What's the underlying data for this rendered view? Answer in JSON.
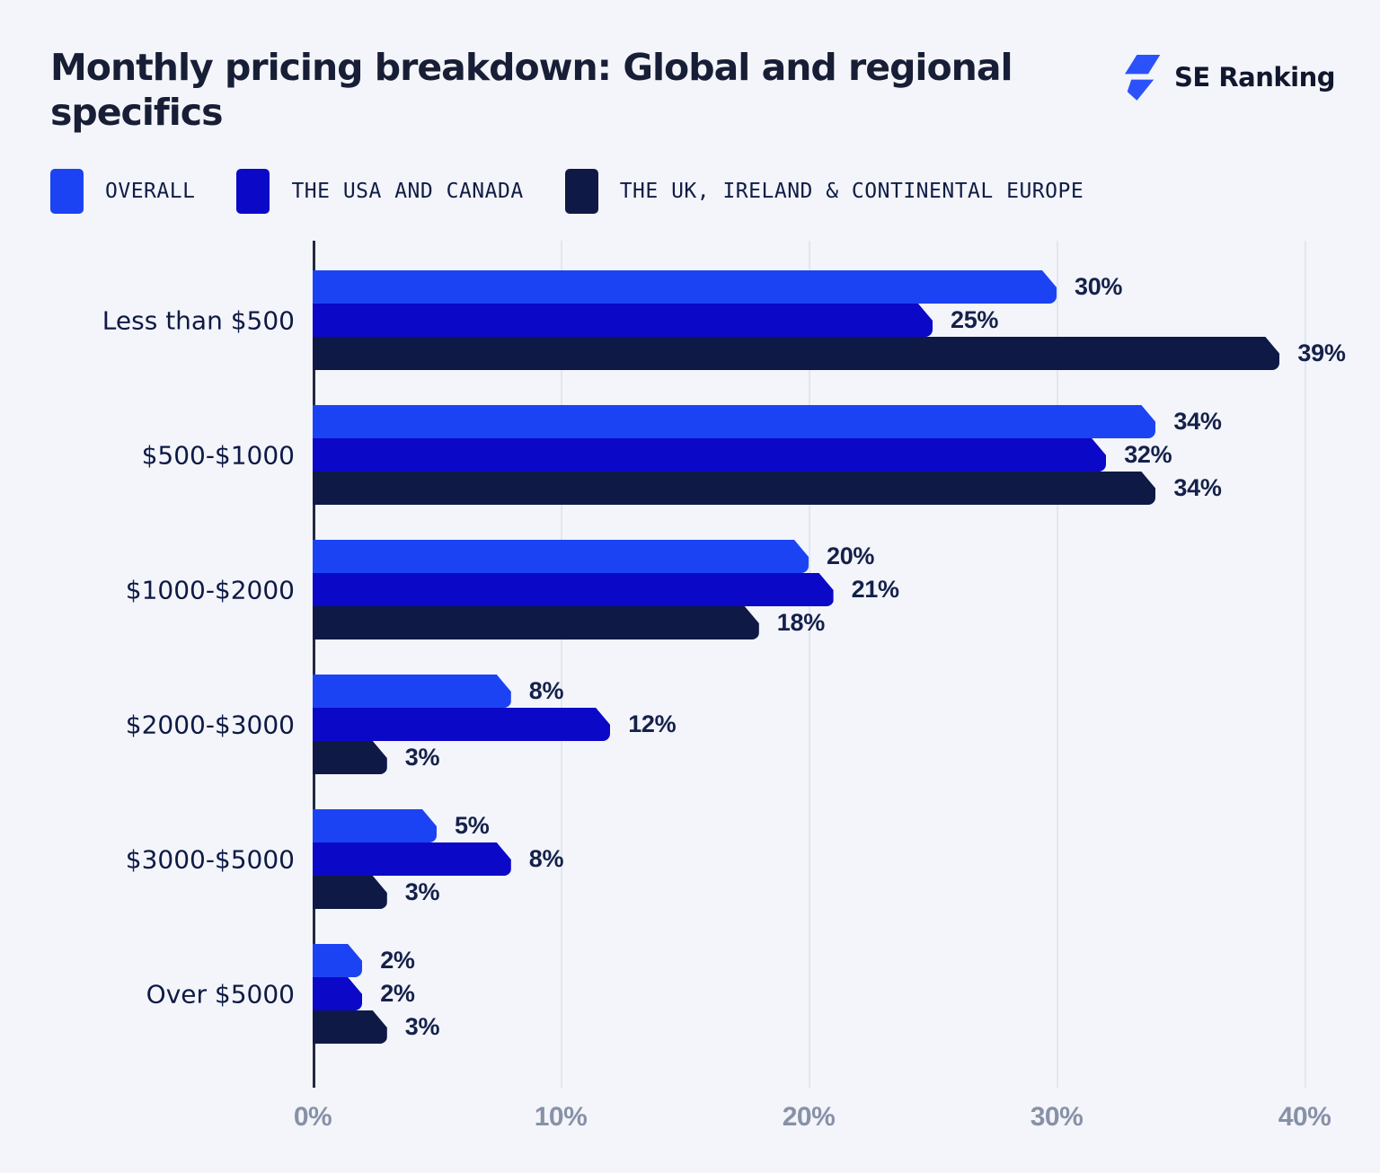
{
  "header": {
    "title": "Monthly pricing breakdown: Global and regional specifics",
    "brand": "SE Ranking"
  },
  "legend": {
    "items": [
      {
        "label": "OVERALL",
        "color": "#1C43F3"
      },
      {
        "label": "THE USA AND CANADA",
        "color": "#0C08C8"
      },
      {
        "label": "THE UK, IRELAND & CONTINENTAL EUROPE",
        "color": "#0E1A45"
      }
    ]
  },
  "chart_data": {
    "type": "bar",
    "orientation": "horizontal",
    "title": "Monthly pricing breakdown: Global and regional specifics",
    "categories": [
      "Less than $500",
      "$500-$1000",
      "$1000-$2000",
      "$2000-$3000",
      "$3000-$5000",
      "Over $5000"
    ],
    "series": [
      {
        "name": "Overall",
        "color": "#1C43F3",
        "values": [
          30,
          34,
          20,
          8,
          5,
          2
        ]
      },
      {
        "name": "The USA and Canada",
        "color": "#0C08C8",
        "values": [
          25,
          32,
          21,
          12,
          8,
          2
        ]
      },
      {
        "name": "The UK, Ireland & Continental Europe",
        "color": "#0E1A45",
        "values": [
          39,
          34,
          18,
          3,
          3,
          3
        ]
      }
    ],
    "value_suffix": "%",
    "xlim": [
      0,
      40
    ],
    "x_tick_values": [
      0,
      10,
      20,
      30,
      40
    ],
    "x_tick_labels": [
      "0%",
      "10%",
      "20%",
      "30%",
      "40%"
    ],
    "grid": "vertical",
    "legend_position": "top",
    "data_labels": true
  },
  "icons": {
    "logo": "lightning-bolt-icon"
  },
  "colors": {
    "background": "#F3F5FA",
    "title_text": "#171E36",
    "category_label": "#0E1A45",
    "value_label": "#15214B",
    "tick_label": "#8791A7",
    "gridline": "#E2E6EF",
    "axis_line": "#232A40",
    "logo_accent": "#2B52FA",
    "logo_text": "#10172E"
  }
}
